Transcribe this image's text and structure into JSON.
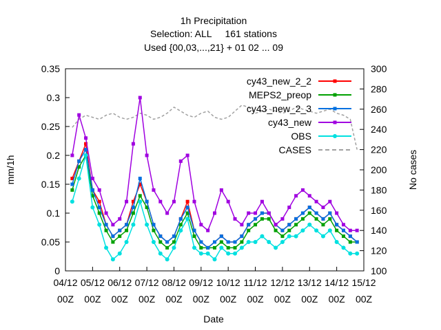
{
  "chart_data": {
    "type": "line",
    "title": [
      "1h Precipitation",
      "Selection: ALL     161 stations",
      "Used {00,03,...,21} + 01 02 ... 09"
    ],
    "xlabel": "Date",
    "ylabel": "mm/1h",
    "y2label": "No cases",
    "ylim": [
      0,
      0.35
    ],
    "y2lim": [
      100,
      300
    ],
    "yticks": [
      "0",
      "0.05",
      "0.1",
      "0.15",
      "0.2",
      "0.25",
      "0.3",
      "0.35"
    ],
    "y2ticks": [
      "100",
      "120",
      "140",
      "160",
      "180",
      "200",
      "220",
      "240",
      "260",
      "280",
      "300"
    ],
    "xticks": [
      {
        "day": 4,
        "l1": "04/12",
        "l2": "00Z"
      },
      {
        "day": 5,
        "l1": "05/12",
        "l2": "00Z"
      },
      {
        "day": 6,
        "l1": "06/12",
        "l2": "00Z"
      },
      {
        "day": 7,
        "l1": "07/12",
        "l2": "00Z"
      },
      {
        "day": 8,
        "l1": "08/12",
        "l2": "00Z"
      },
      {
        "day": 9,
        "l1": "09/12",
        "l2": "00Z"
      },
      {
        "day": 10,
        "l1": "10/12",
        "l2": "00Z"
      },
      {
        "day": 11,
        "l1": "11/12",
        "l2": "00Z"
      },
      {
        "day": 12,
        "l1": "12/12",
        "l2": "00Z"
      },
      {
        "day": 13,
        "l1": "13/12",
        "l2": "00Z"
      },
      {
        "day": 14,
        "l1": "14/12",
        "l2": "00Z"
      },
      {
        "day": 15,
        "l1": "15/12",
        "l2": "00Z"
      }
    ],
    "legend_position": "top-right",
    "grid": false,
    "x": [
      4.25,
      4.5,
      4.75,
      5.0,
      5.25,
      5.5,
      5.75,
      6.0,
      6.25,
      6.5,
      6.75,
      7.0,
      7.25,
      7.5,
      7.75,
      8.0,
      8.25,
      8.5,
      8.75,
      9.0,
      9.25,
      9.5,
      9.75,
      10.0,
      10.25,
      10.5,
      10.75,
      11.0,
      11.25,
      11.5,
      11.75,
      12.0,
      12.25,
      12.5,
      12.75,
      13.0,
      13.25,
      13.5,
      13.75,
      14.0,
      14.25,
      14.5,
      14.75
    ],
    "series": [
      {
        "name": "cy43_new_2_2",
        "color": "#ff0000",
        "values": [
          0.16,
          0.19,
          0.22,
          0.14,
          0.12,
          0.08,
          0.06,
          0.07,
          0.08,
          0.12,
          0.15,
          0.12,
          0.08,
          0.06,
          0.05,
          0.06,
          0.09,
          0.12,
          0.07,
          0.05,
          0.04,
          0.05,
          0.06,
          0.05,
          0.05,
          0.06,
          0.08,
          0.09,
          0.1,
          0.1,
          0.08,
          0.07,
          0.08,
          0.09,
          0.1,
          0.11,
          0.1,
          0.09,
          0.1,
          0.08,
          0.07,
          0.06,
          0.05
        ]
      },
      {
        "name": "MEPS2_preop",
        "color": "#00a000",
        "values": [
          0.14,
          0.18,
          0.2,
          0.13,
          0.1,
          0.07,
          0.05,
          0.06,
          0.07,
          0.1,
          0.13,
          0.11,
          0.07,
          0.05,
          0.04,
          0.05,
          0.08,
          0.1,
          0.06,
          0.04,
          0.04,
          0.04,
          0.05,
          0.04,
          0.04,
          0.05,
          0.07,
          0.08,
          0.09,
          0.09,
          0.07,
          0.06,
          0.07,
          0.08,
          0.09,
          0.1,
          0.09,
          0.08,
          0.09,
          0.07,
          0.06,
          0.05,
          0.05
        ]
      },
      {
        "name": "cy43_new_2_3",
        "color": "#0070e0",
        "values": [
          0.15,
          0.19,
          0.21,
          0.14,
          0.11,
          0.08,
          0.06,
          0.07,
          0.08,
          0.11,
          0.16,
          0.12,
          0.08,
          0.06,
          0.05,
          0.06,
          0.09,
          0.11,
          0.07,
          0.05,
          0.04,
          0.05,
          0.06,
          0.05,
          0.05,
          0.06,
          0.08,
          0.09,
          0.1,
          0.1,
          0.08,
          0.07,
          0.08,
          0.09,
          0.1,
          0.11,
          0.1,
          0.09,
          0.1,
          0.08,
          0.07,
          0.06,
          0.05
        ]
      },
      {
        "name": "cy43_new",
        "color": "#a000e0",
        "values": [
          0.2,
          0.27,
          0.23,
          0.16,
          0.14,
          0.1,
          0.08,
          0.09,
          0.12,
          0.22,
          0.3,
          0.2,
          0.14,
          0.12,
          0.1,
          0.12,
          0.19,
          0.2,
          0.12,
          0.08,
          0.07,
          0.1,
          0.14,
          0.12,
          0.09,
          0.08,
          0.1,
          0.1,
          0.12,
          0.1,
          0.08,
          0.09,
          0.11,
          0.13,
          0.14,
          0.13,
          0.12,
          0.11,
          0.12,
          0.1,
          0.08,
          0.07,
          0.07
        ]
      },
      {
        "name": "OBS",
        "color": "#00e0e0",
        "values": [
          0.12,
          0.16,
          0.2,
          0.11,
          0.08,
          0.04,
          0.02,
          0.03,
          0.05,
          0.08,
          0.12,
          0.08,
          0.05,
          0.03,
          0.02,
          0.04,
          0.07,
          0.09,
          0.04,
          0.03,
          0.03,
          0.02,
          0.04,
          0.03,
          0.03,
          0.04,
          0.05,
          0.05,
          0.06,
          0.05,
          0.04,
          0.05,
          0.06,
          0.06,
          0.07,
          0.08,
          0.07,
          0.06,
          0.07,
          0.05,
          0.04,
          0.03,
          0.03
        ]
      }
    ],
    "cases": {
      "name": "CASES",
      "color": "#a0a0a0",
      "values": [
        242,
        250,
        254,
        252,
        250,
        254,
        256,
        252,
        250,
        252,
        256,
        254,
        250,
        252,
        256,
        262,
        258,
        254,
        252,
        256,
        258,
        252,
        250,
        252,
        258,
        264,
        262,
        256,
        258,
        260,
        258,
        256,
        258,
        262,
        260,
        258,
        256,
        258,
        260,
        256,
        254,
        250,
        220
      ]
    }
  }
}
